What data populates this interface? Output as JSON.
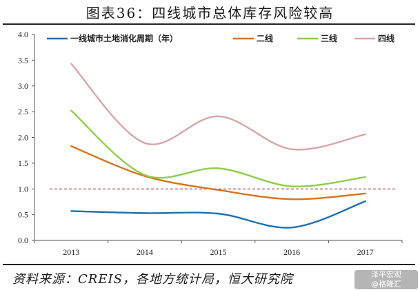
{
  "header": {
    "title": "图表36：四线城市总体库存风险较高"
  },
  "footer": {
    "source": "资料来源：CREIS，各地方统计局，恒大研究院"
  },
  "watermark": {
    "line1": "泽平宏观",
    "line2": "@格隆汇"
  },
  "chart_data": {
    "type": "line",
    "categories": [
      "2013",
      "2014",
      "2015",
      "2016",
      "2017"
    ],
    "ylim": [
      0,
      4.0
    ],
    "yticks": [
      "0.0",
      "0.5",
      "1.0",
      "1.5",
      "2.0",
      "2.5",
      "3.0",
      "3.5",
      "4.0"
    ],
    "reference_line": {
      "value": 1.0,
      "style": "dashed",
      "color": "#9b1c1c"
    },
    "legend_position": "top",
    "series": [
      {
        "name": "一线城市土地消化周期（年）",
        "color": "#1f6fb4",
        "values": [
          0.57,
          0.53,
          0.52,
          0.25,
          0.76
        ]
      },
      {
        "name": "二线",
        "color": "#d9731c",
        "values": [
          1.83,
          1.25,
          0.98,
          0.8,
          0.91
        ]
      },
      {
        "name": "三线",
        "color": "#8ccd4a",
        "values": [
          2.52,
          1.27,
          1.4,
          1.05,
          1.23
        ]
      },
      {
        "name": "四线",
        "color": "#d7a5a5",
        "values": [
          3.43,
          1.89,
          2.41,
          1.77,
          2.06
        ]
      }
    ]
  }
}
